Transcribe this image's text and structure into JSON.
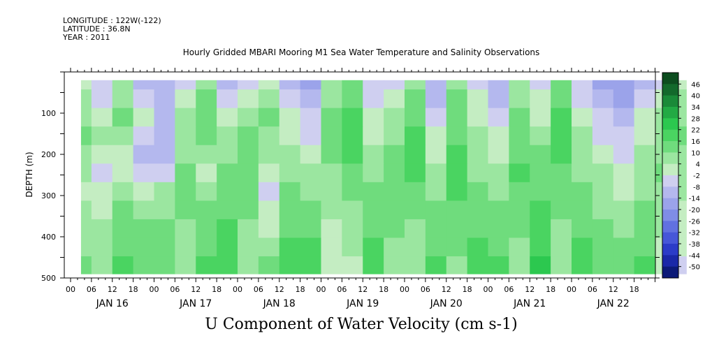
{
  "header": {
    "longitude": "LONGITUDE : 122W(-122)",
    "latitude": "LATITUDE : 36.8N",
    "year": "YEAR : 2011"
  },
  "chart_data": {
    "type": "heatmap",
    "title": "Hourly Gridded MBARI Mooring M1 Sea Water Temperature and Salinity Observations",
    "xlabel": "U Component of Water Velocity (cm s-1)",
    "ylabel": "DEPTH (m)",
    "ylim": [
      0,
      500
    ],
    "y_ticks": [
      100,
      200,
      300,
      400,
      500
    ],
    "x_hour_labels": [
      "00",
      "06",
      "12",
      "18",
      "00",
      "06",
      "12",
      "18",
      "00",
      "06",
      "12",
      "18",
      "00",
      "06",
      "12",
      "18",
      "00",
      "06",
      "12",
      "18",
      "00",
      "06",
      "12",
      "18",
      "00",
      "06",
      "12",
      "18"
    ],
    "x_day_labels": [
      "JAN 16",
      "JAN 17",
      "JAN 18",
      "JAN 19",
      "JAN 20",
      "JAN 21",
      "JAN 22"
    ],
    "colorbar_levels": [
      46,
      40,
      34,
      28,
      22,
      16,
      10,
      4,
      -2,
      -8,
      -14,
      -20,
      -26,
      -32,
      -38,
      -44,
      -50
    ],
    "colorbar_colors": [
      "#0d4d1f",
      "#13692b",
      "#1a8a38",
      "#22aa44",
      "#2cc84f",
      "#4ad461",
      "#6fdc7d",
      "#9be6a0",
      "#c4edc2",
      "#cfcff0",
      "#b4b8ee",
      "#9ba3ea",
      "#7f8de6",
      "#6171e0",
      "#4657d8",
      "#2b3cc8",
      "#1a28a8",
      "#0c1a78"
    ],
    "data_values": {
      "depth_levels": [
        20,
        65,
        110,
        155,
        200,
        245,
        290,
        335,
        380,
        425,
        470,
        490
      ],
      "time_hours_from_jan15_00h": [
        3,
        9,
        15,
        21,
        27,
        33,
        39,
        45,
        51,
        57,
        63,
        69,
        75,
        81,
        87,
        93,
        99,
        105,
        111,
        117,
        123,
        129,
        135,
        141,
        147,
        153,
        159,
        165,
        171,
        177
      ],
      "u_cm_s": [
        [
          2,
          -6,
          4,
          -10,
          -14,
          -8,
          6,
          -12,
          -4,
          2,
          -10,
          -16,
          4,
          10,
          -8,
          -4,
          8,
          -12,
          6,
          -6,
          -14,
          4,
          -6,
          10,
          -8,
          -16,
          -20,
          -10,
          -4,
          2
        ],
        [
          6,
          -4,
          8,
          -6,
          -12,
          -2,
          10,
          -8,
          2,
          6,
          -6,
          -12,
          8,
          14,
          -4,
          0,
          12,
          -10,
          10,
          -2,
          -10,
          8,
          -2,
          14,
          -4,
          -12,
          -16,
          -6,
          0,
          6
        ],
        [
          8,
          0,
          10,
          -2,
          -10,
          4,
          12,
          -2,
          6,
          10,
          -2,
          -8,
          10,
          16,
          0,
          4,
          14,
          -6,
          12,
          2,
          -6,
          10,
          2,
          16,
          0,
          -8,
          -12,
          -2,
          4,
          8
        ],
        [
          10,
          4,
          6,
          -8,
          -14,
          6,
          10,
          4,
          10,
          8,
          2,
          -4,
          12,
          18,
          2,
          8,
          16,
          -2,
          14,
          4,
          -2,
          12,
          6,
          18,
          4,
          -4,
          -8,
          2,
          6,
          10
        ],
        [
          6,
          0,
          2,
          -12,
          -10,
          8,
          6,
          8,
          12,
          4,
          6,
          0,
          10,
          16,
          6,
          10,
          18,
          2,
          16,
          6,
          2,
          14,
          10,
          16,
          6,
          0,
          -4,
          4,
          8,
          8
        ],
        [
          4,
          -4,
          -2,
          -6,
          -4,
          10,
          2,
          10,
          14,
          0,
          8,
          4,
          8,
          12,
          8,
          12,
          16,
          6,
          18,
          8,
          6,
          16,
          12,
          14,
          8,
          4,
          -2,
          6,
          10,
          6
        ],
        [
          2,
          -2,
          6,
          2,
          4,
          12,
          6,
          12,
          12,
          -4,
          10,
          8,
          6,
          10,
          10,
          14,
          12,
          8,
          16,
          10,
          8,
          14,
          14,
          12,
          10,
          6,
          2,
          8,
          8,
          4
        ],
        [
          4,
          2,
          10,
          8,
          8,
          10,
          10,
          14,
          10,
          -2,
          12,
          12,
          4,
          8,
          12,
          12,
          10,
          10,
          14,
          12,
          10,
          12,
          16,
          10,
          12,
          8,
          6,
          10,
          6,
          2
        ],
        [
          6,
          4,
          12,
          10,
          10,
          8,
          12,
          16,
          8,
          2,
          14,
          14,
          2,
          6,
          14,
          10,
          8,
          12,
          12,
          14,
          12,
          10,
          18,
          8,
          14,
          10,
          8,
          12,
          4,
          0
        ],
        [
          8,
          6,
          14,
          12,
          12,
          6,
          14,
          18,
          6,
          6,
          16,
          16,
          0,
          4,
          16,
          8,
          6,
          14,
          10,
          16,
          14,
          8,
          20,
          6,
          16,
          12,
          10,
          14,
          2,
          -2
        ],
        [
          10,
          8,
          16,
          14,
          14,
          4,
          16,
          20,
          4,
          10,
          18,
          18,
          -2,
          2,
          18,
          6,
          4,
          16,
          8,
          18,
          16,
          6,
          22,
          4,
          18,
          14,
          12,
          16,
          0,
          -4
        ],
        [
          10,
          8,
          16,
          14,
          14,
          4,
          16,
          20,
          4,
          10,
          18,
          18,
          -2,
          2,
          18,
          6,
          4,
          16,
          8,
          18,
          16,
          6,
          22,
          4,
          18,
          14,
          12,
          16,
          0,
          -4
        ]
      ]
    },
    "data_extent": {
      "x_start_hours": 3,
      "x_end_hours": 177,
      "depth_top": 20,
      "depth_bottom": 490
    }
  }
}
